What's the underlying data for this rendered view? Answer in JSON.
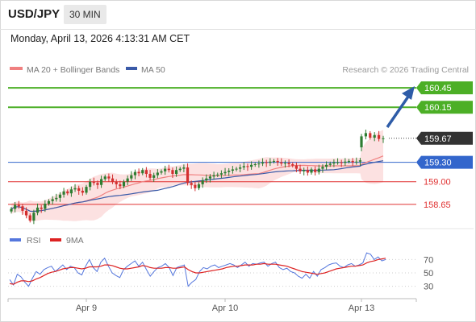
{
  "header": {
    "symbol": "USD/JPY",
    "timeframe": "30 MIN"
  },
  "datetime": "Monday, April 13, 2026 4:13:31 AM CET",
  "legend": {
    "ma20_bb": "MA 20 + Bollinger Bands",
    "ma50": "MA 50"
  },
  "source": "Research © 2026 Trading Central",
  "colors": {
    "resistance": "#4caf26",
    "pivot": "#3366cc",
    "support": "#e03030",
    "price_box": "#333333",
    "candle_up": "#2e7d32",
    "candle_down": "#d32f2f",
    "ma20": "#f08080",
    "ma50": "#3a5aa8",
    "bb_fill": "#fcdcdc",
    "rsi": "#5577dd",
    "rsi_ma": "#dd2222",
    "arrow": "#2e5ca8"
  },
  "chart_data": [
    {
      "type": "candlestick",
      "title": "USD/JPY 30 MIN",
      "x_tick_labels": [
        "Apr 9",
        "Apr 10",
        "Apr 13"
      ],
      "ylim": [
        158.3,
        160.6
      ],
      "last_price": "159.67",
      "levels": [
        {
          "label": "160.45",
          "value": 160.45,
          "kind": "resistance"
        },
        {
          "label": "160.15",
          "value": 160.15,
          "kind": "resistance"
        },
        {
          "label": "159.30",
          "value": 159.3,
          "kind": "pivot"
        },
        {
          "label": "159.00",
          "value": 159.0,
          "kind": "support"
        },
        {
          "label": "158.65",
          "value": 158.65,
          "kind": "support"
        }
      ],
      "closes": [
        158.58,
        158.64,
        158.62,
        158.55,
        158.48,
        158.4,
        158.52,
        158.6,
        158.58,
        158.66,
        158.7,
        158.73,
        158.75,
        158.8,
        158.85,
        158.82,
        158.88,
        158.9,
        158.86,
        158.83,
        158.92,
        159.0,
        158.98,
        158.95,
        159.04,
        159.08,
        159.05,
        159.0,
        158.96,
        158.93,
        159.0,
        159.05,
        159.1,
        159.15,
        159.13,
        159.18,
        159.12,
        159.06,
        159.1,
        159.14,
        159.16,
        159.2,
        159.18,
        159.12,
        159.18,
        159.2,
        159.22,
        158.98,
        158.95,
        158.9,
        158.96,
        159.02,
        159.05,
        159.08,
        159.1,
        159.11,
        159.13,
        159.15,
        159.17,
        159.19,
        159.2,
        159.22,
        159.24,
        159.23,
        159.26,
        159.27,
        159.28,
        159.3,
        159.29,
        159.31,
        159.32,
        159.3,
        159.28,
        159.29,
        159.27,
        159.25,
        159.2,
        159.16,
        159.18,
        159.14,
        159.19,
        159.15,
        159.2,
        159.23,
        159.26,
        159.28,
        159.3,
        159.3,
        159.29,
        159.31,
        159.32,
        159.3,
        159.31,
        159.33
      ],
      "gap_closes": [
        159.7,
        159.75,
        159.68,
        159.72,
        159.66,
        159.67
      ],
      "series": [
        {
          "name": "MA 20 + Bollinger Bands",
          "role": "ma20"
        },
        {
          "name": "MA 50",
          "role": "ma50"
        }
      ]
    },
    {
      "type": "line",
      "title": "RSI",
      "x_tick_labels": [
        "Apr 9",
        "Apr 10",
        "Apr 13"
      ],
      "ylim": [
        15,
        85
      ],
      "yticks": [
        70,
        50,
        30
      ],
      "series": [
        {
          "name": "RSI",
          "values": [
            40,
            32,
            48,
            44,
            36,
            30,
            42,
            52,
            48,
            55,
            58,
            60,
            52,
            57,
            62,
            55,
            60,
            58,
            50,
            47,
            60,
            70,
            58,
            52,
            66,
            72,
            60,
            50,
            46,
            43,
            55,
            60,
            64,
            68,
            60,
            66,
            55,
            45,
            52,
            58,
            60,
            64,
            58,
            46,
            58,
            60,
            62,
            30,
            36,
            40,
            52,
            58,
            56,
            60,
            62,
            58,
            60,
            62,
            64,
            62,
            58,
            62,
            66,
            60,
            64,
            63,
            65,
            66,
            60,
            64,
            66,
            58,
            55,
            57,
            52,
            50,
            45,
            42,
            48,
            42,
            52,
            45,
            55,
            58,
            62,
            64,
            65,
            60,
            58,
            62,
            64,
            60,
            62,
            65,
            80,
            78,
            70,
            74,
            68,
            70
          ]
        },
        {
          "name": "9MA",
          "values": [
            34,
            33,
            36,
            38,
            38,
            37,
            38,
            41,
            43,
            46,
            49,
            51,
            52,
            54,
            56,
            57,
            58,
            58,
            57,
            56,
            57,
            59,
            59,
            59,
            60,
            62,
            62,
            61,
            59,
            57,
            56,
            56,
            57,
            58,
            59,
            61,
            60,
            58,
            57,
            57,
            57,
            58,
            58,
            57,
            57,
            58,
            59,
            55,
            52,
            50,
            50,
            51,
            52,
            53,
            54,
            55,
            56,
            58,
            59,
            60,
            60,
            61,
            62,
            62,
            62,
            63,
            63,
            64,
            63,
            63,
            63,
            62,
            61,
            60,
            58,
            56,
            54,
            52,
            51,
            50,
            49,
            48,
            49,
            50,
            52,
            54,
            56,
            57,
            58,
            59,
            60,
            60,
            61,
            62,
            65,
            67,
            68,
            70,
            71,
            72
          ]
        }
      ]
    }
  ],
  "rsi_legend": {
    "rsi": "RSI",
    "ma": "9MA"
  }
}
